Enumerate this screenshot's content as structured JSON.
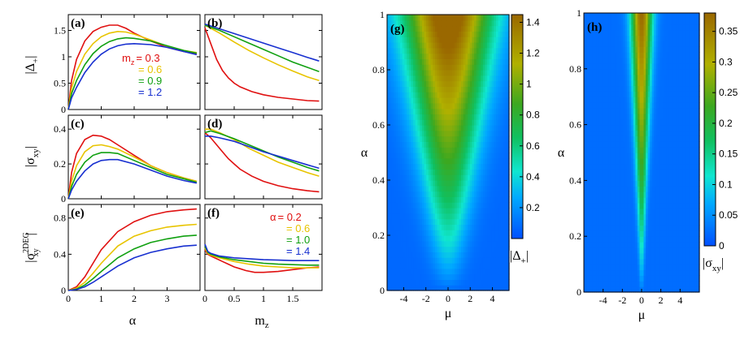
{
  "colors": {
    "red": "#e01010",
    "yellow": "#e8c400",
    "green": "#10a010",
    "blue": "#1830d0"
  },
  "axis_text": {
    "alpha": "α",
    "mz_sub": "z",
    "m": "m",
    "mu": "μ"
  },
  "ylabels": {
    "delta": "|Δ+|",
    "sigma": "|σxy|",
    "sigma2deg": "|σxy2DEG|"
  },
  "chart_data": [
    {
      "id": "a",
      "type": "line",
      "panel_label": "(a)",
      "xlim": [
        0,
        4
      ],
      "ylim": [
        0,
        1.8
      ],
      "xticks": [
        0,
        1,
        2,
        3
      ],
      "yticks": [
        0,
        0.5,
        1,
        1.5
      ],
      "ytick_labels": [
        "0",
        "0.5",
        "1",
        "1.5"
      ],
      "legend_title": "m",
      "legend_sub": "z",
      "legend": [
        "= 0.3",
        "= 0.6",
        "= 0.9",
        "= 1.2"
      ],
      "series": [
        {
          "name": "m_z = 0.3",
          "color": "red",
          "x": [
            0,
            0.1,
            0.25,
            0.5,
            0.75,
            1,
            1.25,
            1.5,
            1.75,
            2,
            2.5,
            3,
            3.5,
            3.9
          ],
          "y": [
            0,
            0.55,
            0.95,
            1.3,
            1.48,
            1.56,
            1.6,
            1.6,
            1.54,
            1.45,
            1.3,
            1.18,
            1.1,
            1.06
          ]
        },
        {
          "name": "m_z = 0.6",
          "color": "yellow",
          "x": [
            0,
            0.1,
            0.25,
            0.5,
            0.75,
            1,
            1.25,
            1.5,
            1.75,
            2,
            2.5,
            3,
            3.5,
            3.9
          ],
          "y": [
            0,
            0.4,
            0.72,
            1.05,
            1.25,
            1.38,
            1.45,
            1.48,
            1.47,
            1.43,
            1.32,
            1.2,
            1.12,
            1.08
          ]
        },
        {
          "name": "m_z = 0.9",
          "color": "green",
          "x": [
            0,
            0.1,
            0.25,
            0.5,
            0.75,
            1,
            1.25,
            1.5,
            1.75,
            2,
            2.5,
            3,
            3.5,
            3.9
          ],
          "y": [
            0,
            0.3,
            0.55,
            0.85,
            1.06,
            1.2,
            1.29,
            1.34,
            1.36,
            1.35,
            1.3,
            1.21,
            1.12,
            1.07
          ]
        },
        {
          "name": "m_z = 1.2",
          "color": "blue",
          "x": [
            0,
            0.1,
            0.25,
            0.5,
            0.75,
            1,
            1.25,
            1.5,
            1.75,
            2,
            2.5,
            3,
            3.5,
            3.9
          ],
          "y": [
            0,
            0.22,
            0.42,
            0.7,
            0.9,
            1.05,
            1.15,
            1.21,
            1.24,
            1.25,
            1.23,
            1.18,
            1.1,
            1.04
          ]
        }
      ]
    },
    {
      "id": "b",
      "type": "line",
      "panel_label": "(b)",
      "xlim": [
        0,
        2
      ],
      "ylim": [
        0,
        1.8
      ],
      "xticks": [
        0,
        0.5,
        1,
        1.5
      ],
      "yticks": [
        0,
        0.5,
        1,
        1.5
      ],
      "series": [
        {
          "name": "α = 0.2",
          "color": "red",
          "x": [
            0,
            0.1,
            0.2,
            0.3,
            0.4,
            0.5,
            0.6,
            0.8,
            1,
            1.25,
            1.5,
            1.75,
            1.95
          ],
          "y": [
            1.55,
            1.25,
            0.95,
            0.74,
            0.6,
            0.5,
            0.43,
            0.34,
            0.28,
            0.23,
            0.2,
            0.17,
            0.16
          ]
        },
        {
          "name": "α = 0.6",
          "color": "yellow",
          "x": [
            0,
            0.25,
            0.5,
            0.75,
            1,
            1.25,
            1.5,
            1.75,
            1.95
          ],
          "y": [
            1.6,
            1.45,
            1.28,
            1.12,
            0.98,
            0.85,
            0.73,
            0.62,
            0.55
          ]
        },
        {
          "name": "α = 1.0",
          "color": "green",
          "x": [
            0,
            0.25,
            0.5,
            0.75,
            1,
            1.25,
            1.5,
            1.75,
            1.95
          ],
          "y": [
            1.6,
            1.5,
            1.38,
            1.26,
            1.14,
            1.02,
            0.9,
            0.8,
            0.72
          ]
        },
        {
          "name": "α = 1.4",
          "color": "blue",
          "x": [
            0,
            0.25,
            0.5,
            0.75,
            1,
            1.25,
            1.5,
            1.75,
            1.95
          ],
          "y": [
            1.62,
            1.53,
            1.44,
            1.35,
            1.26,
            1.17,
            1.08,
            0.99,
            0.92
          ]
        }
      ]
    },
    {
      "id": "c",
      "type": "line",
      "panel_label": "(c)",
      "xlim": [
        0,
        4
      ],
      "ylim": [
        0,
        0.48
      ],
      "xticks": [
        0,
        1,
        2,
        3
      ],
      "yticks": [
        0,
        0.2,
        0.4
      ],
      "ytick_labels": [
        "0",
        "0.2",
        "0.4"
      ],
      "series": [
        {
          "name": "m_z = 0.3",
          "color": "red",
          "x": [
            0,
            0.1,
            0.25,
            0.5,
            0.75,
            1,
            1.25,
            1.5,
            2,
            2.5,
            3,
            3.5,
            3.9
          ],
          "y": [
            0,
            0.15,
            0.26,
            0.34,
            0.365,
            0.36,
            0.34,
            0.31,
            0.25,
            0.19,
            0.15,
            0.12,
            0.1
          ]
        },
        {
          "name": "m_z = 0.6",
          "color": "yellow",
          "x": [
            0,
            0.1,
            0.25,
            0.5,
            0.75,
            1,
            1.25,
            1.5,
            2,
            2.5,
            3,
            3.5,
            3.9
          ],
          "y": [
            0,
            0.1,
            0.19,
            0.27,
            0.305,
            0.31,
            0.3,
            0.285,
            0.24,
            0.19,
            0.15,
            0.12,
            0.1
          ]
        },
        {
          "name": "m_z = 0.9",
          "color": "green",
          "x": [
            0,
            0.1,
            0.25,
            0.5,
            0.75,
            1,
            1.25,
            1.5,
            2,
            2.5,
            3,
            3.5,
            3.9
          ],
          "y": [
            0,
            0.07,
            0.14,
            0.21,
            0.25,
            0.265,
            0.265,
            0.26,
            0.22,
            0.18,
            0.14,
            0.115,
            0.095
          ]
        },
        {
          "name": "m_z = 1.2",
          "color": "blue",
          "x": [
            0,
            0.1,
            0.25,
            0.5,
            0.75,
            1,
            1.25,
            1.5,
            2,
            2.5,
            3,
            3.5,
            3.9
          ],
          "y": [
            0,
            0.05,
            0.1,
            0.16,
            0.2,
            0.22,
            0.225,
            0.225,
            0.2,
            0.165,
            0.13,
            0.105,
            0.09
          ]
        }
      ]
    },
    {
      "id": "d",
      "type": "line",
      "panel_label": "(d)",
      "xlim": [
        0,
        2
      ],
      "ylim": [
        0,
        0.48
      ],
      "xticks": [
        0,
        0.5,
        1,
        1.5
      ],
      "yticks": [
        0,
        0.2,
        0.4
      ],
      "series": [
        {
          "name": "α = 0.2",
          "color": "red",
          "x": [
            0,
            0.1,
            0.2,
            0.3,
            0.4,
            0.5,
            0.6,
            0.8,
            1,
            1.25,
            1.5,
            1.75,
            1.95
          ],
          "y": [
            0.38,
            0.35,
            0.31,
            0.27,
            0.23,
            0.2,
            0.17,
            0.13,
            0.1,
            0.075,
            0.058,
            0.046,
            0.04
          ]
        },
        {
          "name": "α = 0.6",
          "color": "yellow",
          "x": [
            0,
            0.1,
            0.25,
            0.5,
            0.75,
            1,
            1.25,
            1.5,
            1.75,
            1.95
          ],
          "y": [
            0.4,
            0.4,
            0.38,
            0.34,
            0.29,
            0.25,
            0.21,
            0.18,
            0.15,
            0.13
          ]
        },
        {
          "name": "α = 1.0",
          "color": "green",
          "x": [
            0,
            0.1,
            0.25,
            0.5,
            0.75,
            1,
            1.25,
            1.5,
            1.75,
            1.95
          ],
          "y": [
            0.38,
            0.39,
            0.375,
            0.345,
            0.31,
            0.275,
            0.24,
            0.21,
            0.18,
            0.16
          ]
        },
        {
          "name": "α = 1.4",
          "color": "blue",
          "x": [
            0,
            0.1,
            0.25,
            0.5,
            0.75,
            1,
            1.25,
            1.5,
            1.75,
            1.95
          ],
          "y": [
            0.36,
            0.36,
            0.35,
            0.33,
            0.3,
            0.27,
            0.245,
            0.22,
            0.195,
            0.175
          ]
        }
      ]
    },
    {
      "id": "e",
      "type": "line",
      "panel_label": "(e)",
      "xlim": [
        0,
        4
      ],
      "ylim": [
        0,
        0.95
      ],
      "xticks": [
        0,
        1,
        2,
        3
      ],
      "yticks": [
        0,
        0.4,
        0.8
      ],
      "ytick_labels": [
        "0",
        "0.4",
        "0.8"
      ],
      "xtick_labels": [
        "0",
        "1",
        "2",
        "3"
      ],
      "series": [
        {
          "name": "m_z = 0.3",
          "color": "red",
          "x": [
            0,
            0.25,
            0.5,
            0.75,
            1,
            1.5,
            2,
            2.5,
            3,
            3.5,
            3.9
          ],
          "y": [
            0,
            0.04,
            0.15,
            0.3,
            0.45,
            0.65,
            0.76,
            0.83,
            0.87,
            0.89,
            0.9
          ]
        },
        {
          "name": "m_z = 0.6",
          "color": "yellow",
          "x": [
            0,
            0.25,
            0.5,
            0.75,
            1,
            1.5,
            2,
            2.5,
            3,
            3.5,
            3.9
          ],
          "y": [
            0,
            0.025,
            0.09,
            0.19,
            0.3,
            0.49,
            0.6,
            0.66,
            0.7,
            0.72,
            0.73
          ]
        },
        {
          "name": "m_z = 0.9",
          "color": "green",
          "x": [
            0,
            0.25,
            0.5,
            0.75,
            1,
            1.5,
            2,
            2.5,
            3,
            3.5,
            3.9
          ],
          "y": [
            0,
            0.015,
            0.06,
            0.13,
            0.21,
            0.36,
            0.46,
            0.53,
            0.57,
            0.6,
            0.61
          ]
        },
        {
          "name": "m_z = 1.2",
          "color": "blue",
          "x": [
            0,
            0.25,
            0.5,
            0.75,
            1,
            1.5,
            2,
            2.5,
            3,
            3.5,
            3.9
          ],
          "y": [
            0,
            0.01,
            0.04,
            0.09,
            0.15,
            0.27,
            0.36,
            0.42,
            0.46,
            0.49,
            0.5
          ]
        }
      ]
    },
    {
      "id": "f",
      "type": "line",
      "panel_label": "(f)",
      "xlim": [
        0,
        2
      ],
      "ylim": [
        0,
        0.95
      ],
      "xticks": [
        0,
        0.5,
        1,
        1.5
      ],
      "yticks": [
        0,
        0.4,
        0.8
      ],
      "xtick_labels": [
        "0",
        "0.5",
        "1",
        "1.5"
      ],
      "legend_title": "α",
      "legend_title_value": "= 0.2",
      "legend": [
        "= 0.6",
        "= 1.0",
        "= 1.4"
      ],
      "series": [
        {
          "name": "α = 0.2",
          "color": "red",
          "x": [
            0,
            0.05,
            0.1,
            0.2,
            0.3,
            0.4,
            0.5,
            0.6,
            0.7,
            0.85,
            1,
            1.25,
            1.5,
            1.75,
            1.95
          ],
          "y": [
            0.45,
            0.4,
            0.38,
            0.35,
            0.32,
            0.29,
            0.26,
            0.24,
            0.22,
            0.2,
            0.2,
            0.21,
            0.23,
            0.25,
            0.26
          ]
        },
        {
          "name": "α = 0.6",
          "color": "yellow",
          "x": [
            0,
            0.05,
            0.1,
            0.25,
            0.5,
            0.75,
            1,
            1.25,
            1.5,
            1.75,
            1.95
          ],
          "y": [
            0.47,
            0.41,
            0.39,
            0.36,
            0.32,
            0.29,
            0.27,
            0.26,
            0.25,
            0.25,
            0.25
          ]
        },
        {
          "name": "α = 1.0",
          "color": "green",
          "x": [
            0,
            0.05,
            0.1,
            0.25,
            0.5,
            0.75,
            1,
            1.25,
            1.5,
            1.75,
            1.95
          ],
          "y": [
            0.49,
            0.42,
            0.4,
            0.37,
            0.34,
            0.32,
            0.3,
            0.29,
            0.285,
            0.28,
            0.28
          ]
        },
        {
          "name": "α = 1.4",
          "color": "blue",
          "x": [
            0,
            0.05,
            0.1,
            0.25,
            0.5,
            0.75,
            1,
            1.25,
            1.5,
            1.75,
            1.95
          ],
          "y": [
            0.51,
            0.43,
            0.41,
            0.38,
            0.36,
            0.35,
            0.34,
            0.335,
            0.33,
            0.33,
            0.33
          ]
        }
      ]
    },
    {
      "id": "g",
      "type": "heatmap",
      "panel_label": "(g)",
      "xlim": [
        -5.5,
        5.5
      ],
      "ylim": [
        0,
        1
      ],
      "xticks": [
        -4,
        -2,
        0,
        2,
        4
      ],
      "xtick_labels": [
        "-4",
        "-2",
        "0",
        "2",
        "4"
      ],
      "yticks": [
        0,
        0.2,
        0.4,
        0.6,
        0.8,
        1
      ],
      "ytick_labels": [
        "0",
        "0.2",
        "0.4",
        "0.6",
        "0.8",
        "1"
      ],
      "colorbar": {
        "min": 0,
        "max": 1.45,
        "ticks": [
          0.2,
          0.4,
          0.6,
          0.8,
          1,
          1.2,
          1.4
        ],
        "tick_labels": [
          "0.2",
          "0.4",
          "0.6",
          "0.8",
          "1",
          "1.2",
          "1.4"
        ]
      }
    },
    {
      "id": "h",
      "type": "heatmap",
      "panel_label": "(h)",
      "xlim": [
        -6,
        6
      ],
      "ylim": [
        0,
        1
      ],
      "xticks": [
        -4,
        -2,
        0,
        2,
        4
      ],
      "xtick_labels": [
        "-4",
        "-2",
        "0",
        "2",
        "4"
      ],
      "yticks": [
        0,
        0.2,
        0.4,
        0.6,
        0.8,
        1
      ],
      "ytick_labels": [
        "0",
        "0.2",
        "0.4",
        "0.6",
        "0.8",
        "1"
      ],
      "colorbar": {
        "min": 0,
        "max": 0.38,
        "ticks": [
          0,
          0.05,
          0.1,
          0.15,
          0.2,
          0.25,
          0.3,
          0.35
        ],
        "tick_labels": [
          "0",
          "0.05",
          "0.1",
          "0.15",
          "0.2",
          "0.25",
          "0.3",
          "0.35"
        ]
      }
    }
  ]
}
